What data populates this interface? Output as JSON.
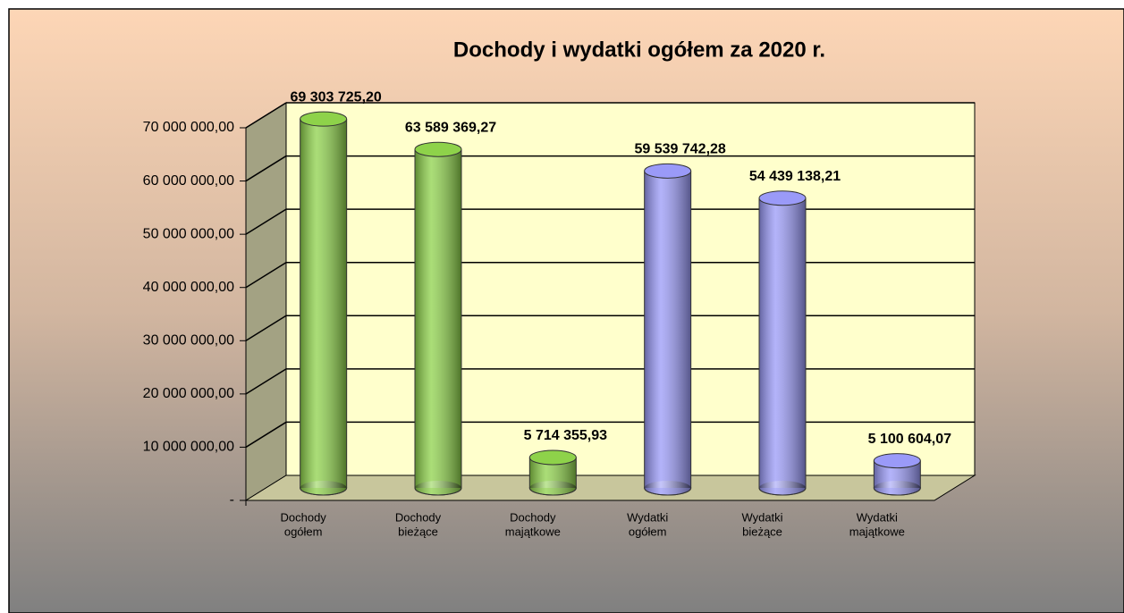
{
  "chart_data": {
    "type": "bar",
    "title": "Dochody i wydatki ogółem  za 2020 r.",
    "categories": [
      [
        "Dochody",
        "ogółem"
      ],
      [
        "Dochody",
        "bieżące"
      ],
      [
        "Dochody",
        "majątkowe"
      ],
      [
        "Wydatki",
        "ogółem"
      ],
      [
        "Wydatki",
        "bieżące"
      ],
      [
        "Wydatki",
        "majątkowe"
      ]
    ],
    "values": [
      69303725.2,
      63589369.27,
      5714355.93,
      59539742.28,
      54439138.21,
      5100604.07
    ],
    "value_labels": [
      "69 303 725,20",
      "63 589 369,27",
      "5 714 355,93",
      "59 539 742,28",
      "54 439 138,21",
      "5 100 604,07"
    ],
    "colors": [
      "#8ed24a",
      "#8ed24a",
      "#8ed24a",
      "#9a9af8",
      "#9a9af8",
      "#9a9af8"
    ],
    "ylim": [
      0,
      70000000
    ],
    "yticks": [
      {
        "value": 0,
        "label": "-"
      },
      {
        "value": 10000000,
        "label": "10 000 000,00"
      },
      {
        "value": 20000000,
        "label": "20 000 000,00"
      },
      {
        "value": 30000000,
        "label": "30 000 000,00"
      },
      {
        "value": 40000000,
        "label": "40 000 000,00"
      },
      {
        "value": 50000000,
        "label": "50 000 000,00"
      },
      {
        "value": 60000000,
        "label": "60 000 000,00"
      },
      {
        "value": 70000000,
        "label": "70 000 000,00"
      }
    ],
    "grid": true
  }
}
